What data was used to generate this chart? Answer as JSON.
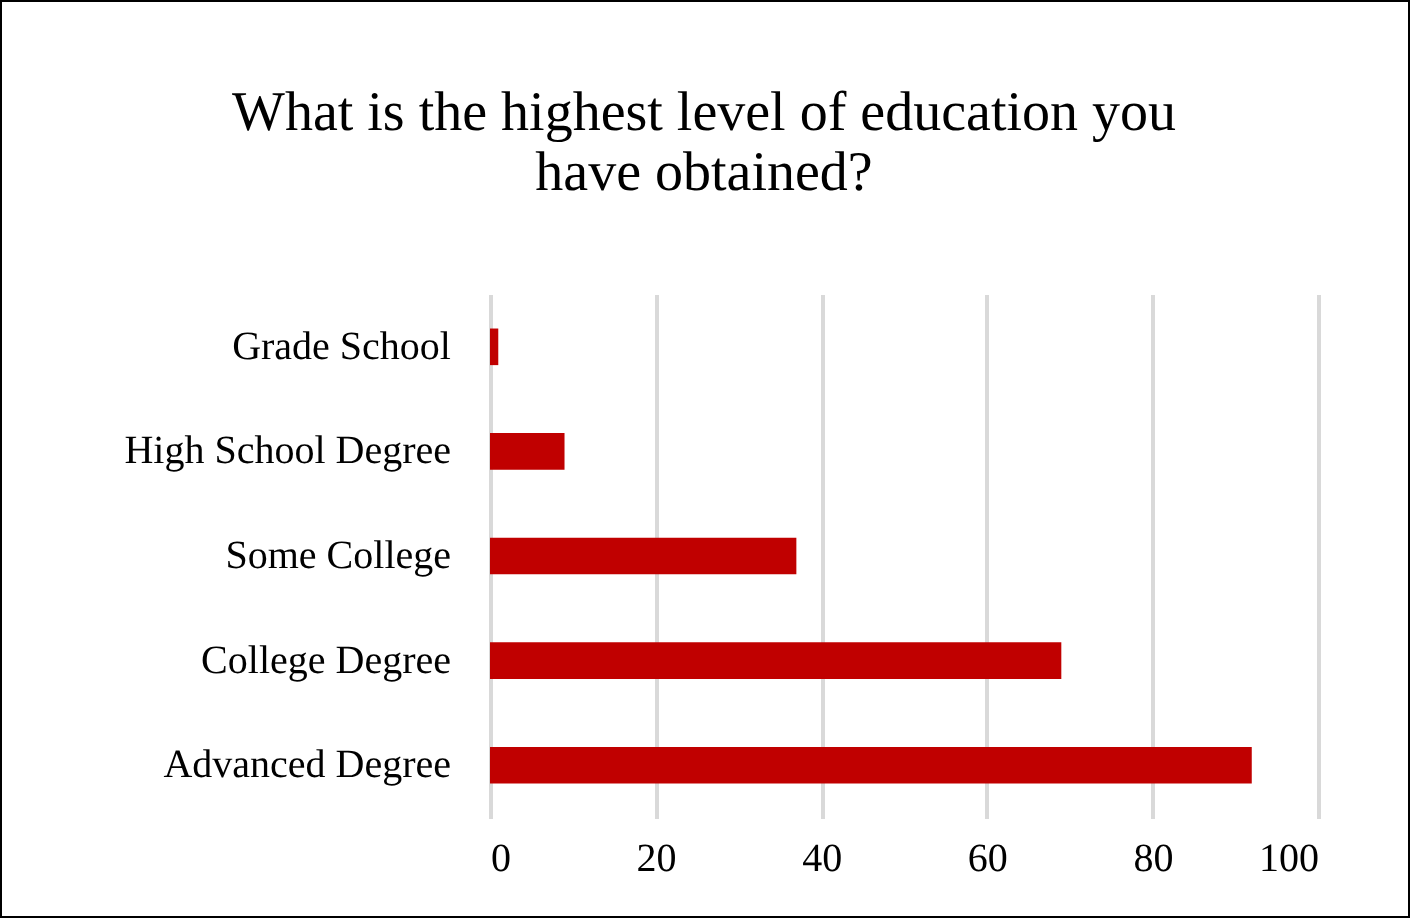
{
  "chart_data": {
    "type": "bar",
    "orientation": "horizontal",
    "title": [
      "What is the highest level of education you",
      "have obtained?"
    ],
    "categories": [
      "Grade School",
      "High School Degree",
      "Some College",
      "College Degree",
      "Advanced Degree"
    ],
    "values": [
      1,
      9,
      37,
      69,
      92
    ],
    "color": "#c00000",
    "xlim": [
      0,
      100
    ],
    "xticks": [
      0,
      20,
      40,
      60,
      80,
      100
    ],
    "grid": "x"
  }
}
